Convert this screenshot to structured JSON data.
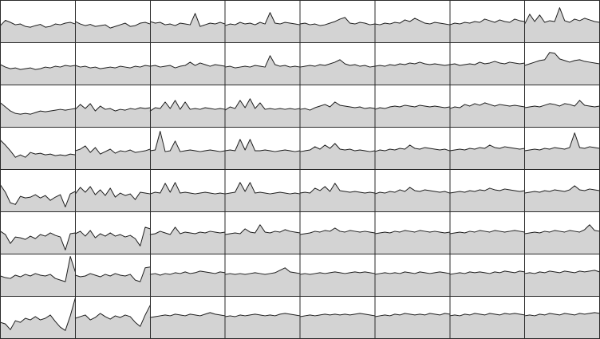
{
  "colors": {
    "area_fill": "#d3d3d3",
    "line": "#1e1e1e",
    "grid": "#2b2b2b",
    "background": "#ffffff"
  },
  "chart_data": {
    "type": "area",
    "layout": "small-multiples",
    "rows": 8,
    "cols": 8,
    "ylim": [
      0,
      1
    ],
    "points_per_panel": 16,
    "grid": true,
    "title": "",
    "xlabel": "",
    "ylabel": "",
    "panels": [
      [
        [
          0.42,
          0.55,
          0.5,
          0.44,
          0.46,
          0.4,
          0.38,
          0.42,
          0.45,
          0.38,
          0.4,
          0.46,
          0.44,
          0.48,
          0.5,
          0.46
        ],
        [
          0.52,
          0.46,
          0.42,
          0.45,
          0.4,
          0.42,
          0.44,
          0.36,
          0.4,
          0.44,
          0.48,
          0.4,
          0.42,
          0.48,
          0.5,
          0.46
        ],
        [
          0.52,
          0.48,
          0.5,
          0.44,
          0.46,
          0.42,
          0.48,
          0.46,
          0.44,
          0.72,
          0.4,
          0.44,
          0.48,
          0.46,
          0.5,
          0.46
        ],
        [
          0.42,
          0.46,
          0.44,
          0.5,
          0.46,
          0.48,
          0.44,
          0.5,
          0.46,
          0.74,
          0.48,
          0.46,
          0.5,
          0.48,
          0.46,
          0.44
        ],
        [
          0.46,
          0.48,
          0.44,
          0.46,
          0.42,
          0.44,
          0.48,
          0.52,
          0.58,
          0.62,
          0.48,
          0.46,
          0.5,
          0.48,
          0.44,
          0.46
        ],
        [
          0.46,
          0.44,
          0.48,
          0.46,
          0.5,
          0.48,
          0.56,
          0.52,
          0.6,
          0.54,
          0.48,
          0.46,
          0.5,
          0.48,
          0.46,
          0.44
        ],
        [
          0.44,
          0.48,
          0.46,
          0.5,
          0.48,
          0.52,
          0.5,
          0.58,
          0.54,
          0.5,
          0.56,
          0.52,
          0.5,
          0.58,
          0.54,
          0.52
        ],
        [
          0.46,
          0.7,
          0.52,
          0.68,
          0.5,
          0.54,
          0.52,
          0.86,
          0.54,
          0.5,
          0.58,
          0.54,
          0.6,
          0.56,
          0.52,
          0.5
        ]
      ],
      [
        [
          0.5,
          0.44,
          0.4,
          0.42,
          0.38,
          0.4,
          0.42,
          0.38,
          0.4,
          0.44,
          0.42,
          0.46,
          0.44,
          0.48,
          0.46,
          0.48
        ],
        [
          0.48,
          0.44,
          0.46,
          0.42,
          0.44,
          0.4,
          0.42,
          0.44,
          0.42,
          0.46,
          0.44,
          0.42,
          0.46,
          0.44,
          0.48,
          0.46
        ],
        [
          0.46,
          0.48,
          0.44,
          0.46,
          0.48,
          0.42,
          0.46,
          0.48,
          0.56,
          0.48,
          0.54,
          0.5,
          0.46,
          0.5,
          0.48,
          0.46
        ],
        [
          0.44,
          0.46,
          0.42,
          0.44,
          0.46,
          0.44,
          0.48,
          0.46,
          0.44,
          0.72,
          0.5,
          0.46,
          0.48,
          0.44,
          0.46,
          0.44
        ],
        [
          0.44,
          0.46,
          0.48,
          0.46,
          0.5,
          0.48,
          0.52,
          0.56,
          0.62,
          0.52,
          0.48,
          0.5,
          0.46,
          0.48,
          0.44,
          0.46
        ],
        [
          0.46,
          0.48,
          0.46,
          0.5,
          0.48,
          0.52,
          0.5,
          0.54,
          0.52,
          0.56,
          0.52,
          0.5,
          0.52,
          0.5,
          0.48,
          0.5
        ],
        [
          0.5,
          0.52,
          0.48,
          0.5,
          0.52,
          0.5,
          0.56,
          0.52,
          0.54,
          0.58,
          0.54,
          0.52,
          0.56,
          0.54,
          0.52,
          0.54
        ],
        [
          0.48,
          0.52,
          0.56,
          0.6,
          0.62,
          0.8,
          0.78,
          0.64,
          0.6,
          0.56,
          0.6,
          0.62,
          0.58,
          0.56,
          0.54,
          0.52
        ]
      ],
      [
        [
          0.6,
          0.5,
          0.4,
          0.34,
          0.32,
          0.34,
          0.32,
          0.36,
          0.4,
          0.38,
          0.4,
          0.42,
          0.44,
          0.42,
          0.44,
          0.46
        ],
        [
          0.44,
          0.56,
          0.46,
          0.58,
          0.4,
          0.52,
          0.44,
          0.46,
          0.4,
          0.44,
          0.42,
          0.46,
          0.44,
          0.48,
          0.46,
          0.48
        ],
        [
          0.4,
          0.48,
          0.46,
          0.62,
          0.46,
          0.66,
          0.44,
          0.62,
          0.44,
          0.46,
          0.44,
          0.48,
          0.46,
          0.44,
          0.46,
          0.44
        ],
        [
          0.42,
          0.5,
          0.46,
          0.66,
          0.48,
          0.7,
          0.46,
          0.6,
          0.44,
          0.46,
          0.44,
          0.46,
          0.44,
          0.46,
          0.44,
          0.46
        ],
        [
          0.44,
          0.46,
          0.42,
          0.48,
          0.52,
          0.56,
          0.5,
          0.62,
          0.54,
          0.52,
          0.5,
          0.48,
          0.5,
          0.46,
          0.48,
          0.46
        ],
        [
          0.44,
          0.48,
          0.46,
          0.5,
          0.52,
          0.5,
          0.54,
          0.52,
          0.5,
          0.54,
          0.52,
          0.5,
          0.52,
          0.5,
          0.48,
          0.5
        ],
        [
          0.46,
          0.5,
          0.48,
          0.56,
          0.52,
          0.58,
          0.54,
          0.6,
          0.56,
          0.52,
          0.56,
          0.54,
          0.52,
          0.54,
          0.52,
          0.5
        ],
        [
          0.48,
          0.5,
          0.52,
          0.5,
          0.54,
          0.58,
          0.56,
          0.52,
          0.58,
          0.56,
          0.52,
          0.66,
          0.54,
          0.52,
          0.5,
          0.52
        ]
      ],
      [
        [
          0.72,
          0.6,
          0.46,
          0.3,
          0.36,
          0.3,
          0.42,
          0.38,
          0.4,
          0.36,
          0.38,
          0.34,
          0.36,
          0.34,
          0.38,
          0.36
        ],
        [
          0.46,
          0.5,
          0.58,
          0.42,
          0.54,
          0.38,
          0.44,
          0.5,
          0.4,
          0.46,
          0.44,
          0.48,
          0.42,
          0.44,
          0.46,
          0.5
        ],
        [
          0.46,
          0.48,
          0.94,
          0.44,
          0.46,
          0.7,
          0.44,
          0.46,
          0.48,
          0.46,
          0.44,
          0.46,
          0.48,
          0.46,
          0.44,
          0.46
        ],
        [
          0.46,
          0.48,
          0.46,
          0.74,
          0.48,
          0.74,
          0.46,
          0.46,
          0.48,
          0.46,
          0.44,
          0.46,
          0.48,
          0.46,
          0.44,
          0.46
        ],
        [
          0.44,
          0.46,
          0.48,
          0.56,
          0.5,
          0.6,
          0.52,
          0.64,
          0.5,
          0.48,
          0.5,
          0.46,
          0.48,
          0.46,
          0.44,
          0.46
        ],
        [
          0.44,
          0.48,
          0.46,
          0.5,
          0.48,
          0.52,
          0.5,
          0.6,
          0.52,
          0.5,
          0.54,
          0.52,
          0.5,
          0.48,
          0.5,
          0.46
        ],
        [
          0.46,
          0.48,
          0.5,
          0.48,
          0.52,
          0.5,
          0.54,
          0.52,
          0.6,
          0.54,
          0.52,
          0.56,
          0.54,
          0.52,
          0.5,
          0.52
        ],
        [
          0.46,
          0.48,
          0.5,
          0.48,
          0.52,
          0.5,
          0.54,
          0.52,
          0.5,
          0.54,
          0.9,
          0.54,
          0.52,
          0.56,
          0.54,
          0.52
        ]
      ],
      [
        [
          0.66,
          0.48,
          0.22,
          0.18,
          0.38,
          0.34,
          0.36,
          0.42,
          0.34,
          0.4,
          0.28,
          0.36,
          0.42,
          0.12,
          0.44,
          0.5
        ],
        [
          0.44,
          0.6,
          0.48,
          0.62,
          0.42,
          0.54,
          0.4,
          0.58,
          0.36,
          0.46,
          0.4,
          0.44,
          0.3,
          0.48,
          0.46,
          0.44
        ],
        [
          0.44,
          0.48,
          0.46,
          0.7,
          0.48,
          0.72,
          0.46,
          0.48,
          0.46,
          0.44,
          0.46,
          0.48,
          0.46,
          0.44,
          0.46,
          0.44
        ],
        [
          0.44,
          0.46,
          0.48,
          0.72,
          0.5,
          0.72,
          0.46,
          0.48,
          0.46,
          0.44,
          0.46,
          0.48,
          0.46,
          0.44,
          0.46,
          0.44
        ],
        [
          0.46,
          0.48,
          0.46,
          0.58,
          0.52,
          0.62,
          0.5,
          0.7,
          0.52,
          0.5,
          0.48,
          0.5,
          0.48,
          0.46,
          0.48,
          0.46
        ],
        [
          0.44,
          0.48,
          0.46,
          0.5,
          0.48,
          0.54,
          0.5,
          0.6,
          0.52,
          0.5,
          0.54,
          0.52,
          0.5,
          0.48,
          0.5,
          0.46
        ],
        [
          0.46,
          0.48,
          0.5,
          0.48,
          0.52,
          0.5,
          0.54,
          0.52,
          0.58,
          0.54,
          0.52,
          0.56,
          0.54,
          0.52,
          0.5,
          0.52
        ],
        [
          0.46,
          0.48,
          0.5,
          0.48,
          0.52,
          0.5,
          0.54,
          0.52,
          0.5,
          0.54,
          0.64,
          0.54,
          0.52,
          0.56,
          0.54,
          0.52
        ]
      ],
      [
        [
          0.56,
          0.48,
          0.26,
          0.42,
          0.4,
          0.36,
          0.44,
          0.38,
          0.48,
          0.44,
          0.52,
          0.46,
          0.42,
          0.1,
          0.5,
          0.52
        ],
        [
          0.5,
          0.56,
          0.44,
          0.58,
          0.4,
          0.5,
          0.44,
          0.52,
          0.44,
          0.48,
          0.42,
          0.46,
          0.38,
          0.2,
          0.66,
          0.62
        ],
        [
          0.48,
          0.5,
          0.56,
          0.52,
          0.48,
          0.66,
          0.5,
          0.54,
          0.52,
          0.5,
          0.54,
          0.52,
          0.56,
          0.54,
          0.52,
          0.54
        ],
        [
          0.48,
          0.5,
          0.52,
          0.5,
          0.62,
          0.54,
          0.52,
          0.72,
          0.54,
          0.52,
          0.56,
          0.54,
          0.6,
          0.56,
          0.54,
          0.52
        ],
        [
          0.48,
          0.5,
          0.52,
          0.56,
          0.54,
          0.58,
          0.56,
          0.64,
          0.56,
          0.54,
          0.58,
          0.56,
          0.54,
          0.56,
          0.54,
          0.52
        ],
        [
          0.5,
          0.52,
          0.54,
          0.52,
          0.56,
          0.54,
          0.58,
          0.56,
          0.54,
          0.58,
          0.56,
          0.54,
          0.56,
          0.54,
          0.52,
          0.54
        ],
        [
          0.5,
          0.52,
          0.54,
          0.52,
          0.56,
          0.54,
          0.58,
          0.56,
          0.54,
          0.58,
          0.56,
          0.54,
          0.56,
          0.58,
          0.56,
          0.54
        ],
        [
          0.5,
          0.52,
          0.54,
          0.52,
          0.56,
          0.54,
          0.58,
          0.56,
          0.54,
          0.58,
          0.56,
          0.54,
          0.6,
          0.72,
          0.58,
          0.56
        ]
      ],
      [
        [
          0.5,
          0.46,
          0.44,
          0.52,
          0.48,
          0.54,
          0.5,
          0.56,
          0.52,
          0.5,
          0.54,
          0.44,
          0.4,
          0.36,
          0.98,
          0.6
        ],
        [
          0.52,
          0.48,
          0.5,
          0.56,
          0.52,
          0.48,
          0.54,
          0.5,
          0.56,
          0.52,
          0.5,
          0.54,
          0.4,
          0.36,
          0.7,
          0.72
        ],
        [
          0.54,
          0.56,
          0.52,
          0.56,
          0.54,
          0.58,
          0.56,
          0.6,
          0.56,
          0.58,
          0.62,
          0.6,
          0.58,
          0.56,
          0.6,
          0.58
        ],
        [
          0.54,
          0.56,
          0.54,
          0.56,
          0.54,
          0.56,
          0.58,
          0.56,
          0.54,
          0.56,
          0.58,
          0.64,
          0.7,
          0.6,
          0.58,
          0.56
        ],
        [
          0.54,
          0.56,
          0.54,
          0.56,
          0.58,
          0.56,
          0.58,
          0.6,
          0.58,
          0.56,
          0.58,
          0.6,
          0.58,
          0.6,
          0.58,
          0.56
        ],
        [
          0.54,
          0.56,
          0.58,
          0.56,
          0.58,
          0.56,
          0.6,
          0.58,
          0.56,
          0.6,
          0.58,
          0.56,
          0.58,
          0.6,
          0.58,
          0.56
        ],
        [
          0.54,
          0.56,
          0.58,
          0.56,
          0.6,
          0.58,
          0.6,
          0.58,
          0.56,
          0.6,
          0.58,
          0.62,
          0.6,
          0.58,
          0.62,
          0.6
        ],
        [
          0.56,
          0.58,
          0.56,
          0.6,
          0.58,
          0.62,
          0.6,
          0.58,
          0.62,
          0.6,
          0.58,
          0.62,
          0.6,
          0.62,
          0.64,
          0.6
        ]
      ],
      [
        [
          0.4,
          0.36,
          0.22,
          0.44,
          0.4,
          0.5,
          0.46,
          0.54,
          0.46,
          0.5,
          0.58,
          0.42,
          0.28,
          0.2,
          0.56,
          1.0
        ],
        [
          0.5,
          0.54,
          0.58,
          0.46,
          0.52,
          0.62,
          0.54,
          0.48,
          0.56,
          0.52,
          0.58,
          0.54,
          0.4,
          0.3,
          0.58,
          0.82
        ],
        [
          0.52,
          0.54,
          0.56,
          0.58,
          0.56,
          0.6,
          0.58,
          0.56,
          0.6,
          0.58,
          0.56,
          0.6,
          0.64,
          0.6,
          0.58,
          0.56
        ],
        [
          0.54,
          0.56,
          0.54,
          0.58,
          0.56,
          0.58,
          0.6,
          0.58,
          0.56,
          0.58,
          0.56,
          0.6,
          0.62,
          0.6,
          0.58,
          0.56
        ],
        [
          0.54,
          0.56,
          0.58,
          0.56,
          0.58,
          0.6,
          0.58,
          0.6,
          0.58,
          0.6,
          0.58,
          0.6,
          0.62,
          0.6,
          0.58,
          0.56
        ],
        [
          0.54,
          0.56,
          0.58,
          0.56,
          0.6,
          0.58,
          0.62,
          0.6,
          0.58,
          0.6,
          0.58,
          0.62,
          0.6,
          0.58,
          0.62,
          0.6
        ],
        [
          0.56,
          0.58,
          0.56,
          0.6,
          0.58,
          0.62,
          0.6,
          0.58,
          0.62,
          0.6,
          0.58,
          0.62,
          0.6,
          0.62,
          0.6,
          0.58
        ],
        [
          0.56,
          0.58,
          0.56,
          0.6,
          0.58,
          0.62,
          0.6,
          0.58,
          0.62,
          0.6,
          0.58,
          0.62,
          0.6,
          0.62,
          0.64,
          0.62
        ]
      ]
    ]
  }
}
